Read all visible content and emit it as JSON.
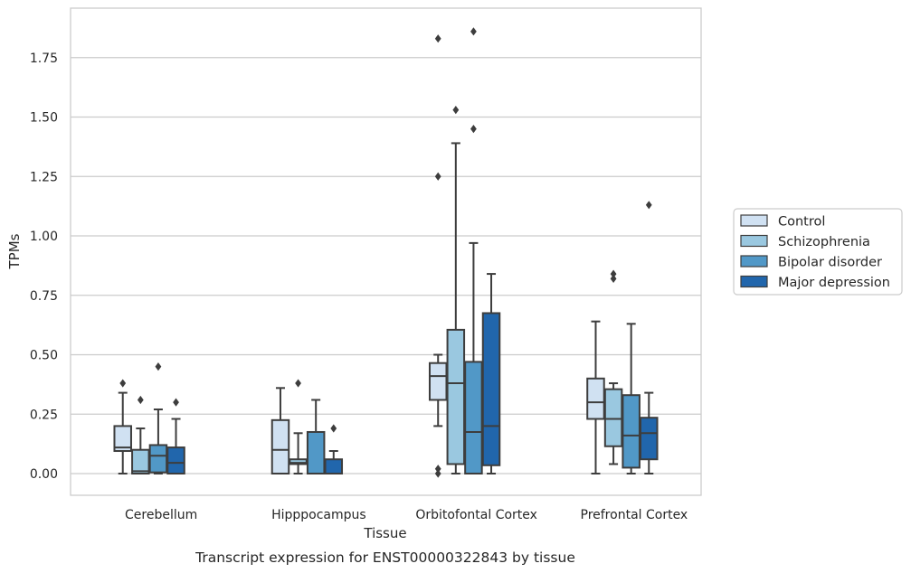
{
  "chart_data": {
    "type": "box",
    "xlabel": "Tissue",
    "ylabel": "TPMs",
    "caption": "Transcript expression for ENST00000322843 by tissue",
    "ylim": [
      -0.09,
      1.96
    ],
    "yticks": [
      "0.00",
      "0.25",
      "0.50",
      "0.75",
      "1.00",
      "1.25",
      "1.50",
      "1.75"
    ],
    "grid": "horizontal",
    "legend_position": "right",
    "categories": [
      "Cerebellum",
      "Hipppocampus",
      "Orbitofontal Cortex",
      "Prefrontal Cortex"
    ],
    "series": [
      {
        "name": "Control",
        "color": "#d0e1f2",
        "boxes": [
          {
            "whislo": 0.0,
            "q1": 0.095,
            "med": 0.11,
            "q3": 0.2,
            "whishi": 0.34,
            "fliers": [
              0.38
            ]
          },
          {
            "whislo": 0.0,
            "q1": 0.0,
            "med": 0.1,
            "q3": 0.225,
            "whishi": 0.36,
            "fliers": []
          },
          {
            "whislo": 0.2,
            "q1": 0.31,
            "med": 0.41,
            "q3": 0.465,
            "whishi": 0.5,
            "fliers": [
              0.0,
              0.02,
              1.25,
              1.83
            ]
          },
          {
            "whislo": 0.0,
            "q1": 0.23,
            "med": 0.3,
            "q3": 0.4,
            "whishi": 0.64,
            "fliers": []
          }
        ]
      },
      {
        "name": "Schizophrenia",
        "color": "#9ac8e0",
        "boxes": [
          {
            "whislo": 0.0,
            "q1": 0.0,
            "med": 0.01,
            "q3": 0.1,
            "whishi": 0.19,
            "fliers": [
              0.31
            ]
          },
          {
            "whislo": 0.0,
            "q1": 0.04,
            "med": 0.045,
            "q3": 0.06,
            "whishi": 0.17,
            "fliers": [
              0.38
            ]
          },
          {
            "whislo": 0.0,
            "q1": 0.04,
            "med": 0.38,
            "q3": 0.605,
            "whishi": 1.39,
            "fliers": [
              1.53
            ]
          },
          {
            "whislo": 0.04,
            "q1": 0.115,
            "med": 0.23,
            "q3": 0.355,
            "whishi": 0.38,
            "fliers": [
              0.82,
              0.84
            ]
          }
        ]
      },
      {
        "name": "Bipolar disorder",
        "color": "#5198c7",
        "boxes": [
          {
            "whislo": 0.0,
            "q1": 0.005,
            "med": 0.075,
            "q3": 0.12,
            "whishi": 0.27,
            "fliers": [
              0.45
            ]
          },
          {
            "whislo": 0.0,
            "q1": 0.0,
            "med": 0.0,
            "q3": 0.175,
            "whishi": 0.31,
            "fliers": []
          },
          {
            "whislo": 0.0,
            "q1": 0.0,
            "med": 0.175,
            "q3": 0.47,
            "whishi": 0.97,
            "fliers": [
              1.45,
              1.86
            ]
          },
          {
            "whislo": 0.0,
            "q1": 0.025,
            "med": 0.16,
            "q3": 0.33,
            "whishi": 0.63,
            "fliers": []
          }
        ]
      },
      {
        "name": "Major depression",
        "color": "#2166ac",
        "boxes": [
          {
            "whislo": 0.0,
            "q1": 0.0,
            "med": 0.045,
            "q3": 0.11,
            "whishi": 0.23,
            "fliers": [
              0.3
            ]
          },
          {
            "whislo": 0.0,
            "q1": 0.0,
            "med": 0.0,
            "q3": 0.06,
            "whishi": 0.095,
            "fliers": [
              0.19
            ]
          },
          {
            "whislo": 0.0,
            "q1": 0.035,
            "med": 0.2,
            "q3": 0.675,
            "whishi": 0.84,
            "fliers": []
          },
          {
            "whislo": 0.0,
            "q1": 0.06,
            "med": 0.17,
            "q3": 0.235,
            "whishi": 0.34,
            "fliers": [
              1.13
            ]
          }
        ]
      }
    ]
  }
}
